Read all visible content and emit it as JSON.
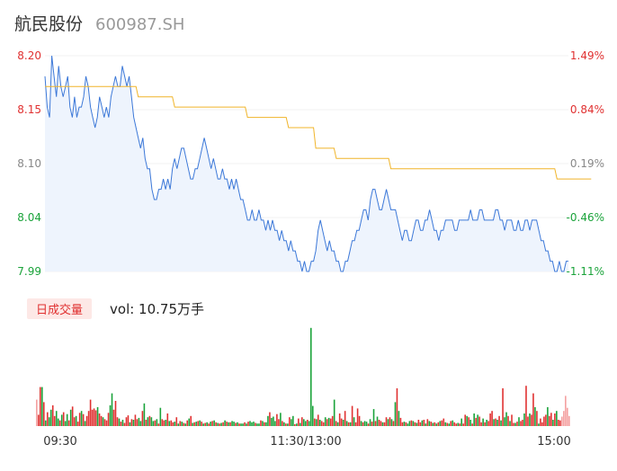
{
  "header": {
    "name": "航民股份",
    "code": "600987.SH"
  },
  "volume_panel": {
    "tag": "日成交量",
    "vol_text": "vol: 10.75万手"
  },
  "colors": {
    "price_line": "#3c78d8",
    "avg_line": "#f0b429",
    "fill": "#eef4fd",
    "up": "#e03030",
    "down": "#1aa33a",
    "neutral": "#888888",
    "grid": "#f2f2f2"
  },
  "chart_data": [
    {
      "type": "line",
      "title": "",
      "x_ticks": [
        "09:30",
        "11:30/13:00",
        "15:00"
      ],
      "y_left_ticks": [
        "8.20",
        "8.15",
        "8.10",
        "8.04",
        "7.99"
      ],
      "y_right_ticks": [
        "1.49%",
        "0.84%",
        "0.19%",
        "-0.46%",
        "-1.11%"
      ],
      "ylim": [
        7.99,
        8.2
      ],
      "prev_close": 8.085,
      "series": [
        {
          "values": [
            8.18,
            8.15,
            8.14,
            8.2,
            8.18,
            8.16,
            8.19,
            8.17,
            8.16,
            8.17,
            8.18,
            8.15,
            8.14,
            8.16,
            8.14,
            8.15,
            8.15,
            8.16,
            8.18,
            8.17,
            8.15,
            8.14,
            8.13,
            8.14,
            8.16,
            8.15,
            8.14,
            8.15,
            8.14,
            8.16,
            8.17,
            8.18,
            8.17,
            8.17,
            8.19,
            8.18,
            8.17,
            8.18,
            8.16,
            8.14,
            8.13,
            8.12,
            8.11,
            8.12,
            8.1,
            8.09,
            8.09,
            8.07,
            8.06,
            8.06,
            8.07,
            8.07,
            8.08,
            8.07,
            8.08,
            8.07,
            8.09,
            8.1,
            8.09,
            8.1,
            8.11,
            8.11,
            8.1,
            8.09,
            8.08,
            8.08,
            8.09,
            8.09,
            8.1,
            8.11,
            8.12,
            8.11,
            8.1,
            8.09,
            8.1,
            8.09,
            8.08,
            8.08,
            8.09,
            8.08,
            8.08,
            8.07,
            8.08,
            8.07,
            8.08,
            8.07,
            8.06,
            8.06,
            8.05,
            8.04,
            8.04,
            8.05,
            8.04,
            8.04,
            8.05,
            8.04,
            8.04,
            8.03,
            8.04,
            8.03,
            8.04,
            8.03,
            8.03,
            8.02,
            8.03,
            8.02,
            8.02,
            8.01,
            8.02,
            8.01,
            8.01,
            8.0,
            8.0,
            7.99,
            8.0,
            7.99,
            7.99,
            8.0,
            8.0,
            8.01,
            8.03,
            8.04,
            8.03,
            8.02,
            8.01,
            8.02,
            8.01,
            8.01,
            8.0,
            8.0,
            7.99,
            7.99,
            8.0,
            8.0,
            8.01,
            8.02,
            8.02,
            8.03,
            8.03,
            8.04,
            8.05,
            8.05,
            8.04,
            8.06,
            8.07,
            8.07,
            8.06,
            8.05,
            8.05,
            8.06,
            8.07,
            8.06,
            8.05,
            8.05,
            8.05,
            8.04,
            8.03,
            8.02,
            8.03,
            8.03,
            8.02,
            8.02,
            8.03,
            8.04,
            8.04,
            8.03,
            8.03,
            8.04,
            8.04,
            8.05,
            8.04,
            8.03,
            8.03,
            8.02,
            8.03,
            8.03,
            8.04,
            8.04,
            8.04,
            8.04,
            8.03,
            8.03,
            8.04,
            8.04,
            8.04,
            8.04,
            8.04,
            8.05,
            8.04,
            8.04,
            8.04,
            8.05,
            8.05,
            8.04,
            8.04,
            8.04,
            8.04,
            8.04,
            8.05,
            8.05,
            8.04,
            8.04,
            8.03,
            8.04,
            8.04,
            8.04,
            8.03,
            8.03,
            8.04,
            8.03,
            8.03,
            8.04,
            8.04,
            8.03,
            8.04,
            8.04,
            8.04,
            8.03,
            8.02,
            8.02,
            8.01,
            8.01,
            8.0,
            8.0,
            7.99,
            7.99,
            8.0,
            7.99,
            7.99,
            8.0,
            8.0
          ]
        },
        {
          "values": [
            8.17,
            8.17,
            8.17,
            8.17,
            8.17,
            8.17,
            8.17,
            8.17,
            8.17,
            8.17,
            8.17,
            8.17,
            8.17,
            8.17,
            8.17,
            8.17,
            8.17,
            8.17,
            8.17,
            8.17,
            8.17,
            8.17,
            8.17,
            8.17,
            8.17,
            8.17,
            8.17,
            8.17,
            8.17,
            8.17,
            8.17,
            8.17,
            8.17,
            8.17,
            8.17,
            8.17,
            8.17,
            8.17,
            8.17,
            8.17,
            8.17,
            8.16,
            8.16,
            8.16,
            8.16,
            8.16,
            8.16,
            8.16,
            8.16,
            8.16,
            8.16,
            8.16,
            8.16,
            8.16,
            8.16,
            8.16,
            8.16,
            8.15,
            8.15,
            8.15,
            8.15,
            8.15,
            8.15,
            8.15,
            8.15,
            8.15,
            8.15,
            8.15,
            8.15,
            8.15,
            8.15,
            8.15,
            8.15,
            8.15,
            8.15,
            8.15,
            8.15,
            8.15,
            8.15,
            8.15,
            8.15,
            8.15,
            8.15,
            8.15,
            8.15,
            8.15,
            8.15,
            8.15,
            8.15,
            8.14,
            8.14,
            8.14,
            8.14,
            8.14,
            8.14,
            8.14,
            8.14,
            8.14,
            8.14,
            8.14,
            8.14,
            8.14,
            8.14,
            8.14,
            8.14,
            8.14,
            8.14,
            8.13,
            8.13,
            8.13,
            8.13,
            8.13,
            8.13,
            8.13,
            8.13,
            8.13,
            8.13,
            8.13,
            8.13,
            8.11,
            8.11,
            8.11,
            8.11,
            8.11,
            8.11,
            8.11,
            8.11,
            8.11,
            8.1,
            8.1,
            8.1,
            8.1,
            8.1,
            8.1,
            8.1,
            8.1,
            8.1,
            8.1,
            8.1,
            8.1,
            8.1,
            8.1,
            8.1,
            8.1,
            8.1,
            8.1,
            8.1,
            8.1,
            8.1,
            8.1,
            8.1,
            8.1,
            8.09,
            8.09,
            8.09,
            8.09,
            8.09,
            8.09,
            8.09,
            8.09,
            8.09,
            8.09,
            8.09,
            8.09,
            8.09,
            8.09,
            8.09,
            8.09,
            8.09,
            8.09,
            8.09,
            8.09,
            8.09,
            8.09,
            8.09,
            8.09,
            8.09,
            8.09,
            8.09,
            8.09,
            8.09,
            8.09,
            8.09,
            8.09,
            8.09,
            8.09,
            8.09,
            8.09,
            8.09,
            8.09,
            8.09,
            8.09,
            8.09,
            8.09,
            8.09,
            8.09,
            8.09,
            8.09,
            8.09,
            8.09,
            8.09,
            8.09,
            8.09,
            8.09,
            8.09,
            8.09,
            8.09,
            8.09,
            8.09,
            8.09,
            8.09,
            8.09,
            8.09,
            8.09,
            8.09,
            8.09,
            8.09,
            8.09,
            8.09,
            8.09,
            8.09,
            8.09,
            8.09,
            8.09,
            8.09,
            8.08,
            8.08,
            8.08,
            8.08,
            8.08,
            8.08,
            8.08,
            8.08,
            8.08,
            8.08,
            8.08,
            8.08,
            8.08,
            8.08,
            8.08,
            8.08
          ]
        }
      ]
    },
    {
      "type": "bar",
      "title": "",
      "ylim": [
        0,
        1600
      ],
      "values": [
        420,
        180,
        620,
        620,
        380,
        90,
        220,
        140,
        260,
        330,
        160,
        240,
        120,
        90,
        180,
        220,
        80,
        190,
        90,
        260,
        310,
        140,
        160,
        70,
        210,
        240,
        190,
        80,
        160,
        240,
        420,
        260,
        280,
        250,
        300,
        200,
        160,
        140,
        110,
        90,
        210,
        330,
        520,
        260,
        400,
        140,
        120,
        70,
        100,
        50,
        140,
        170,
        60,
        110,
        100,
        180,
        110,
        130,
        80,
        240,
        360,
        100,
        140,
        160,
        140,
        80,
        90,
        110,
        40,
        290,
        110,
        90,
        100,
        200,
        80,
        90,
        60,
        70,
        140,
        40,
        80,
        70,
        50,
        40,
        90,
        120,
        160,
        50,
        60,
        70,
        80,
        90,
        70,
        40,
        50,
        60,
        40,
        70,
        80,
        90,
        60,
        50,
        40,
        50,
        60,
        90,
        70,
        60,
        60,
        80,
        70,
        50,
        60,
        40,
        40,
        40,
        60,
        40,
        70,
        80,
        60,
        70,
        50,
        40,
        40,
        90,
        80,
        60,
        60,
        160,
        220,
        130,
        150,
        80,
        190,
        110,
        210,
        80,
        60,
        40,
        40,
        140,
        110,
        160,
        30,
        40,
        120,
        50,
        140,
        110,
        80,
        100,
        80,
        1560,
        320,
        120,
        110,
        180,
        100,
        80,
        60,
        140,
        110,
        130,
        120,
        160,
        420,
        80,
        60,
        200,
        120,
        100,
        240,
        80,
        60,
        60,
        320,
        140,
        60,
        280,
        160,
        80,
        60,
        80,
        70,
        40,
        110,
        70,
        270,
        80,
        150,
        100,
        80,
        60,
        60,
        140,
        110,
        140,
        110,
        80,
        380,
        600,
        240,
        130,
        60,
        70,
        60,
        40,
        80,
        90,
        80,
        60,
        50,
        100,
        60,
        90,
        100,
        40,
        110,
        80,
        70,
        50,
        60,
        40,
        60,
        80,
        90,
        120,
        60,
        50,
        40,
        80,
        90,
        60,
        40,
        50,
        40,
        120,
        40,
        180,
        160,
        140,
        100,
        40,
        200,
        130,
        180,
        150,
        60,
        120,
        60,
        100,
        80,
        200,
        240,
        110,
        120,
        100,
        160,
        90,
        600,
        140,
        220,
        160,
        80,
        180,
        50,
        50,
        70,
        140,
        80,
        100,
        200,
        640,
        150,
        200,
        180,
        520,
        300,
        240,
        40,
        120,
        60,
        150,
        180,
        300,
        160,
        210,
        100,
        200,
        240,
        100,
        90,
        150,
        240,
        480,
        290,
        160
      ],
      "directions": [
        "n",
        "u",
        "u",
        "d",
        "u",
        "d",
        "u",
        "d",
        "d",
        "u",
        "u",
        "d",
        "d",
        "u",
        "d",
        "u",
        "d",
        "d",
        "u",
        "d",
        "u",
        "u",
        "d",
        "u",
        "u",
        "d",
        "u",
        "d",
        "u",
        "u",
        "u",
        "u",
        "u",
        "u",
        "d",
        "u",
        "u",
        "d",
        "u",
        "u",
        "u",
        "d",
        "d",
        "u",
        "u",
        "u",
        "d",
        "u",
        "d",
        "u",
        "u",
        "u",
        "d",
        "u",
        "d",
        "u",
        "u",
        "d",
        "d",
        "u",
        "d",
        "u",
        "d",
        "u",
        "d",
        "d",
        "u",
        "d",
        "u",
        "d",
        "u",
        "u",
        "d",
        "u",
        "d",
        "u",
        "u",
        "d",
        "u",
        "d",
        "u",
        "d",
        "u",
        "d",
        "u",
        "d",
        "u",
        "d",
        "u",
        "d",
        "u",
        "d",
        "u",
        "d",
        "u",
        "d",
        "u",
        "d",
        "u",
        "d",
        "u",
        "d",
        "u",
        "d",
        "u",
        "d",
        "u",
        "d",
        "u",
        "d",
        "d",
        "u",
        "d",
        "u",
        "d",
        "d",
        "u",
        "d",
        "u",
        "d",
        "d",
        "d",
        "u",
        "d",
        "d",
        "u",
        "d",
        "u",
        "d",
        "d",
        "u",
        "d",
        "d",
        "d",
        "u",
        "u",
        "d",
        "u",
        "d",
        "u",
        "d",
        "u",
        "d",
        "d",
        "u",
        "d",
        "u",
        "d",
        "u",
        "d",
        "d",
        "u",
        "d",
        "d",
        "d",
        "u",
        "d",
        "u",
        "d",
        "u",
        "u",
        "d",
        "u",
        "d",
        "u",
        "u",
        "d",
        "u",
        "d",
        "u",
        "u",
        "d",
        "u",
        "d",
        "u",
        "d",
        "u",
        "d",
        "u",
        "u",
        "u",
        "d",
        "u",
        "d",
        "d",
        "u",
        "d",
        "u",
        "d",
        "u",
        "d",
        "u",
        "u",
        "d",
        "u",
        "u",
        "d",
        "u",
        "d",
        "u",
        "d",
        "u",
        "d",
        "u",
        "u",
        "d",
        "u",
        "d",
        "d",
        "u",
        "d",
        "u",
        "d",
        "u",
        "u",
        "d",
        "u",
        "d",
        "u",
        "d",
        "u",
        "d",
        "u",
        "d",
        "u",
        "d",
        "u",
        "u",
        "d",
        "u",
        "d",
        "u",
        "d",
        "u",
        "u",
        "d",
        "u",
        "d",
        "u",
        "u",
        "d",
        "u",
        "d",
        "u",
        "d",
        "u",
        "d",
        "u",
        "u",
        "d",
        "u",
        "d",
        "u",
        "u",
        "u",
        "d",
        "u",
        "d",
        "u",
        "d",
        "u",
        "d",
        "d",
        "u",
        "d",
        "u",
        "u",
        "d",
        "u",
        "d",
        "u",
        "u",
        "d",
        "u",
        "u",
        "d",
        "u",
        "u",
        "d",
        "u",
        "d",
        "u",
        "u",
        "u",
        "u",
        "d",
        "u",
        "u",
        "d",
        "u",
        "d",
        "u",
        "u",
        "n"
      ]
    }
  ]
}
